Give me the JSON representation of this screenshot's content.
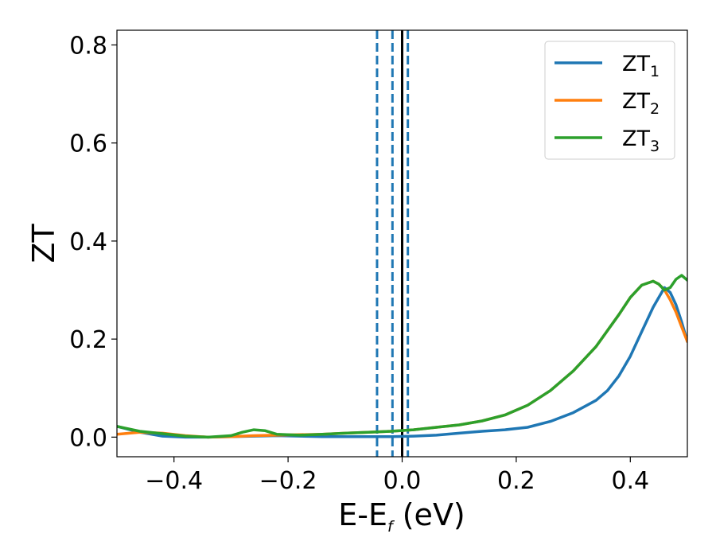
{
  "chart_data": {
    "type": "line",
    "title": "",
    "xlabel": "E-E",
    "xlabel_sub": "f",
    "xlabel_unit": " (eV)",
    "ylabel": "ZT",
    "xlim": [
      -0.5,
      0.5
    ],
    "ylim": [
      -0.04,
      0.83
    ],
    "grid": false,
    "legend_position": "top-right",
    "x_ticks": [
      -0.4,
      -0.2,
      0.0,
      0.2,
      0.4
    ],
    "x_tick_labels": [
      "−0.4",
      "−0.2",
      "0.0",
      "0.2",
      "0.4"
    ],
    "y_ticks": [
      0.0,
      0.2,
      0.4,
      0.6,
      0.8
    ],
    "y_tick_labels": [
      "0.0",
      "0.2",
      "0.4",
      "0.6",
      "0.8"
    ],
    "vertical_lines": [
      {
        "x": -0.044,
        "style": "dashed",
        "color": "#1f77b4"
      },
      {
        "x": -0.017,
        "style": "dashed",
        "color": "#1f77b4"
      },
      {
        "x": 0.01,
        "style": "dashed",
        "color": "#1f77b4"
      },
      {
        "x": 0.0,
        "style": "solid",
        "color": "#000000"
      }
    ],
    "series": [
      {
        "name": "ZT",
        "name_sub": "1",
        "color": "#1f77b4",
        "x": [
          -0.5,
          -0.46,
          -0.42,
          -0.38,
          -0.34,
          -0.3,
          -0.26,
          -0.22,
          -0.18,
          -0.14,
          -0.1,
          -0.06,
          -0.02,
          0.02,
          0.06,
          0.1,
          0.14,
          0.18,
          0.22,
          0.26,
          0.3,
          0.34,
          0.36,
          0.38,
          0.4,
          0.42,
          0.44,
          0.46,
          0.47,
          0.48,
          0.49,
          0.5
        ],
        "y": [
          0.022,
          0.01,
          0.002,
          0.0,
          0.0,
          0.001,
          0.002,
          0.003,
          0.002,
          0.001,
          0.001,
          0.001,
          0.001,
          0.002,
          0.004,
          0.008,
          0.012,
          0.015,
          0.02,
          0.032,
          0.05,
          0.075,
          0.095,
          0.125,
          0.165,
          0.215,
          0.265,
          0.305,
          0.295,
          0.27,
          0.235,
          0.195
        ]
      },
      {
        "name": "ZT",
        "name_sub": "2",
        "color": "#ff7f0e",
        "x": [
          -0.5,
          -0.46,
          -0.42,
          -0.38,
          -0.34,
          -0.3,
          -0.26,
          -0.22,
          -0.18,
          -0.14,
          -0.1,
          -0.06,
          -0.02,
          0.02,
          0.06,
          0.1,
          0.14,
          0.18,
          0.22,
          0.26,
          0.3,
          0.34,
          0.38,
          0.4,
          0.42,
          0.44,
          0.45,
          0.46,
          0.47,
          0.48,
          0.49,
          0.5
        ],
        "y": [
          0.006,
          0.01,
          0.008,
          0.003,
          0.0,
          0.001,
          0.003,
          0.004,
          0.005,
          0.006,
          0.008,
          0.01,
          0.012,
          0.015,
          0.02,
          0.025,
          0.033,
          0.045,
          0.065,
          0.095,
          0.135,
          0.185,
          0.25,
          0.285,
          0.31,
          0.318,
          0.312,
          0.3,
          0.28,
          0.255,
          0.225,
          0.195
        ]
      },
      {
        "name": "ZT",
        "name_sub": "3",
        "color": "#2ca02c",
        "x": [
          -0.5,
          -0.46,
          -0.42,
          -0.38,
          -0.34,
          -0.3,
          -0.28,
          -0.26,
          -0.24,
          -0.22,
          -0.18,
          -0.14,
          -0.1,
          -0.06,
          -0.02,
          0.02,
          0.06,
          0.1,
          0.14,
          0.18,
          0.22,
          0.26,
          0.3,
          0.34,
          0.38,
          0.4,
          0.42,
          0.44,
          0.45,
          0.46,
          0.47,
          0.48,
          0.49,
          0.5
        ],
        "y": [
          0.022,
          0.012,
          0.007,
          0.002,
          0.0,
          0.003,
          0.01,
          0.015,
          0.013,
          0.006,
          0.004,
          0.006,
          0.008,
          0.01,
          0.012,
          0.015,
          0.02,
          0.025,
          0.033,
          0.045,
          0.065,
          0.095,
          0.135,
          0.185,
          0.25,
          0.285,
          0.31,
          0.318,
          0.312,
          0.3,
          0.305,
          0.322,
          0.33,
          0.32
        ]
      }
    ]
  }
}
